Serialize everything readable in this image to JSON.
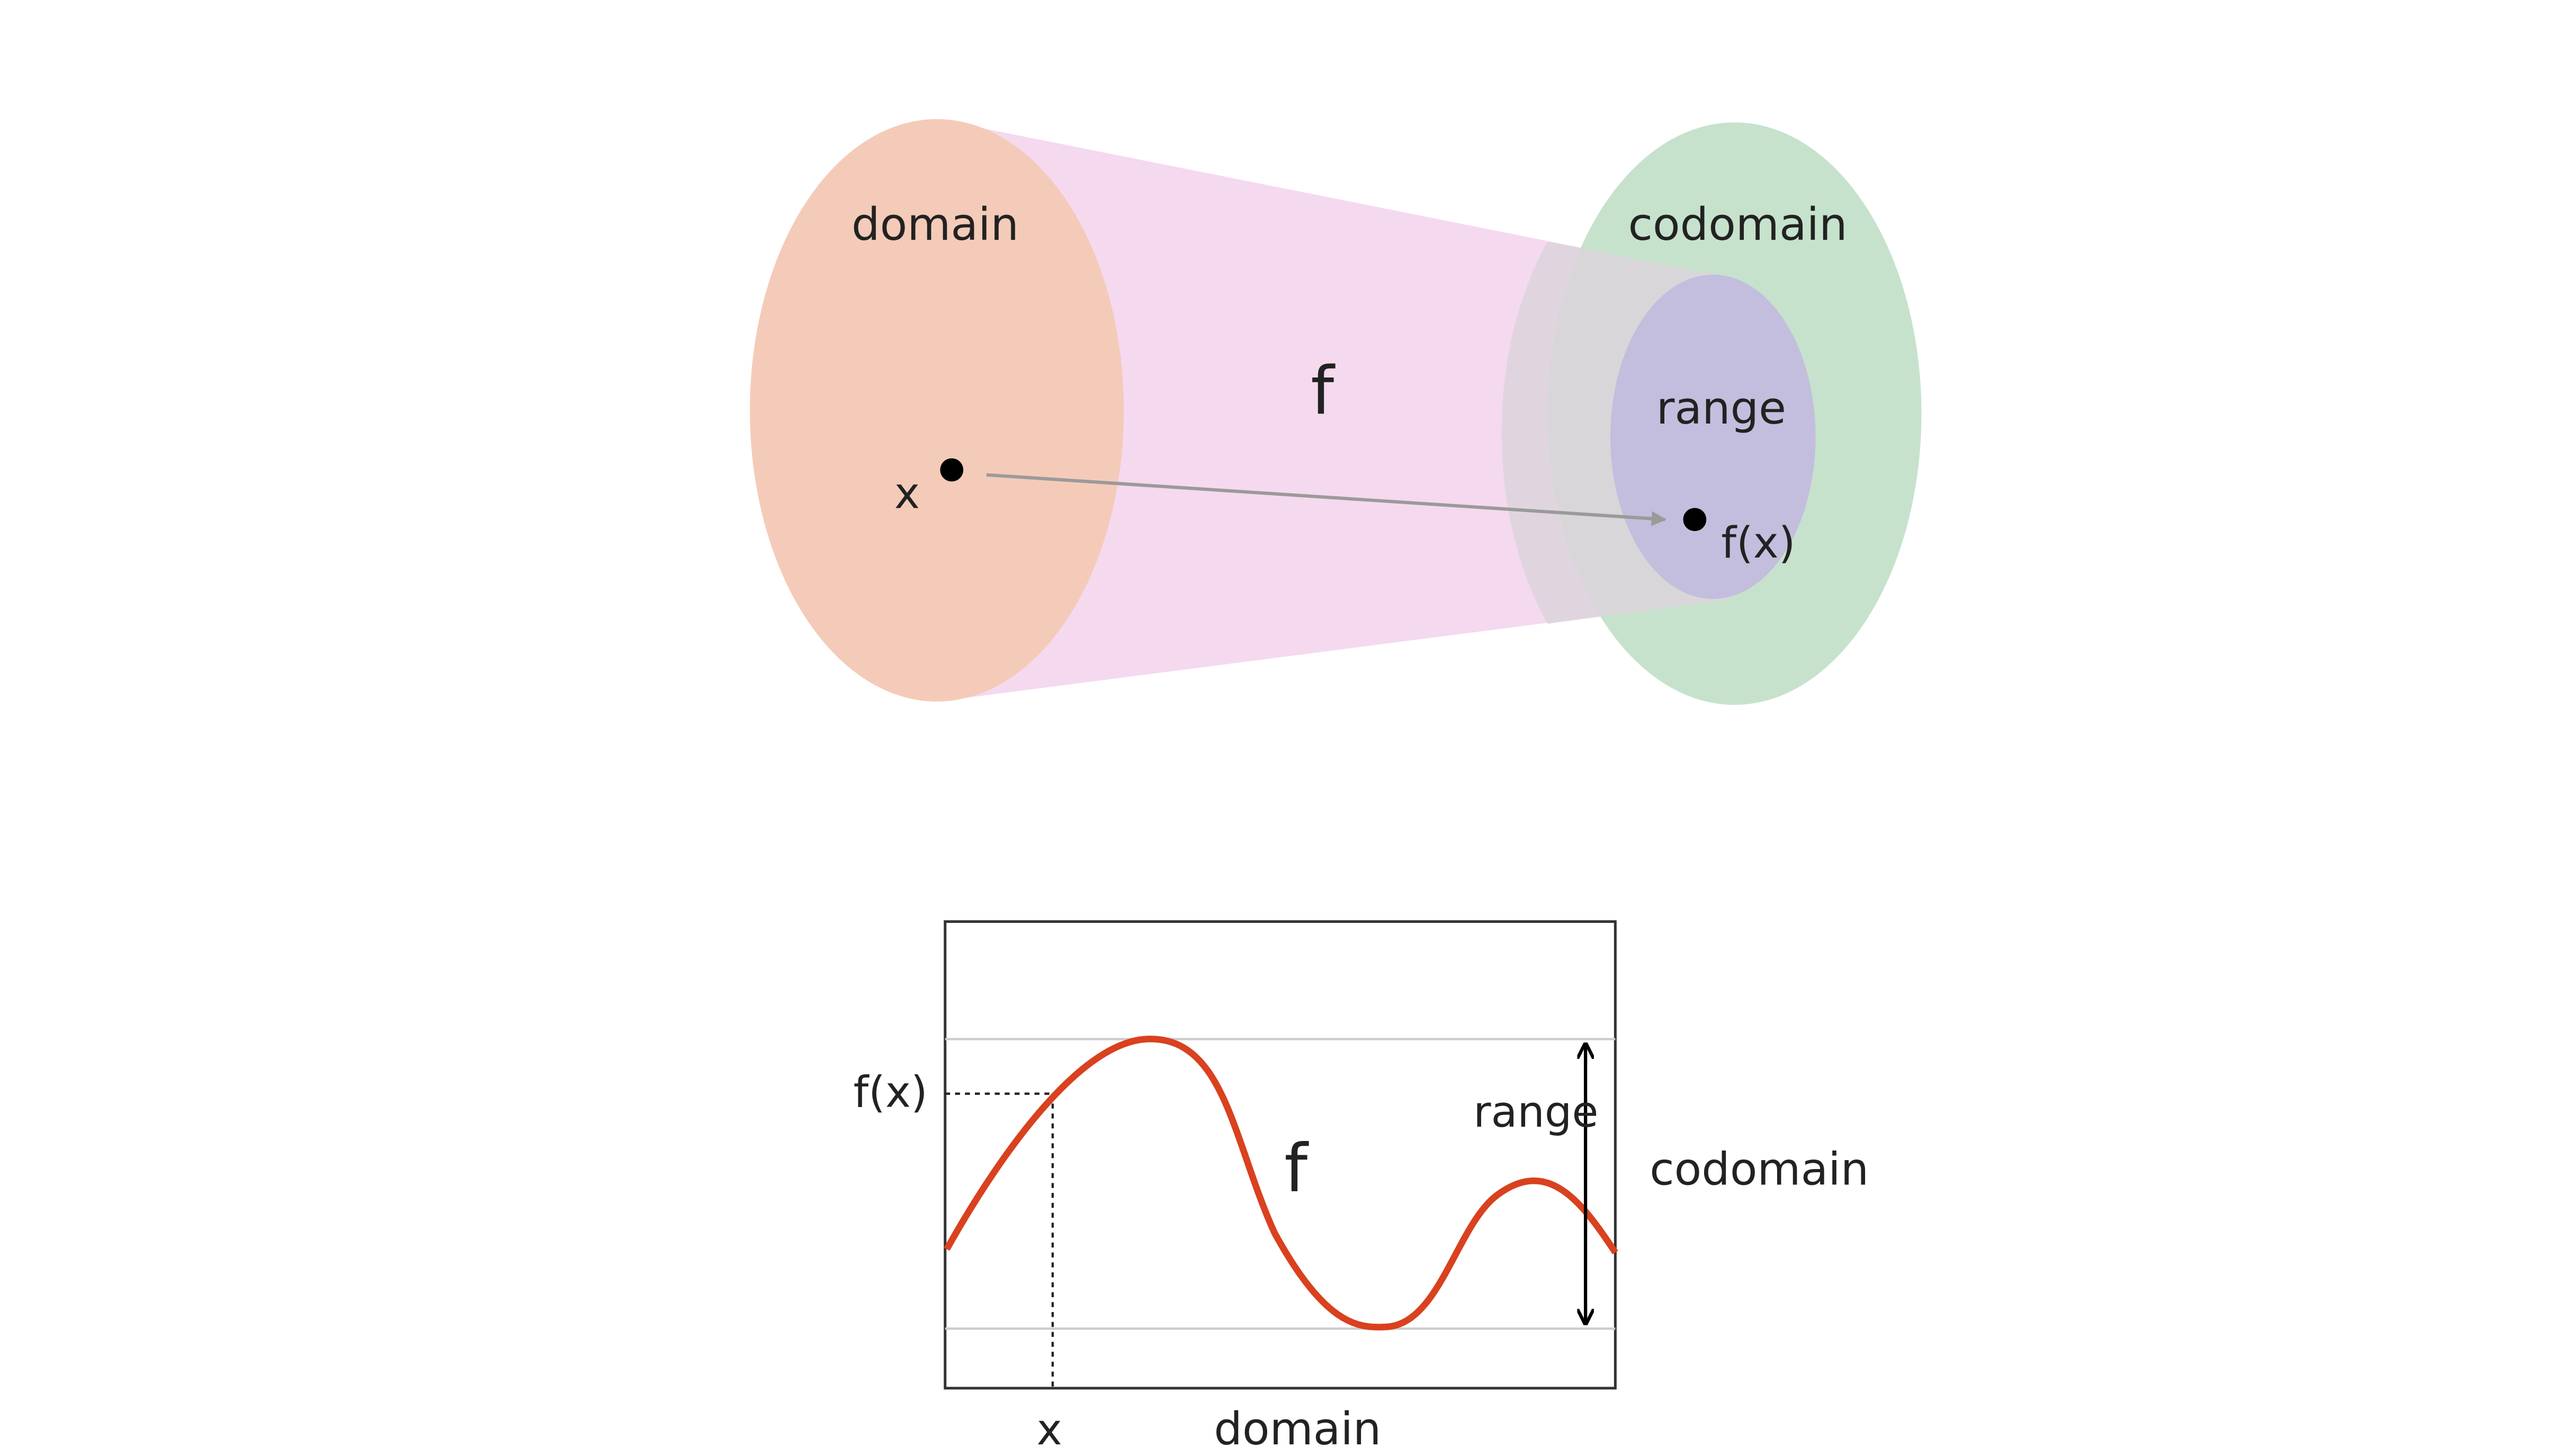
{
  "colors": {
    "domain_fill": "#f4cbb8",
    "mapping_fill": "#f5d9ef",
    "codomain_fill": "#c6e2cc",
    "range_fill": "#c3bedd",
    "curve": "#d9411f",
    "arrow": "#9a9a9a",
    "point": "#000000",
    "frame": "#333333",
    "guide_line": "#cccccc"
  },
  "mapping_diagram": {
    "domain_label": "domain",
    "codomain_label": "codomain",
    "range_label": "range",
    "function_label": "f",
    "input_label": "x",
    "output_label": "f(x)"
  },
  "graph_diagram": {
    "function_label": "f",
    "output_label": "f(x)",
    "input_label": "x",
    "domain_label": "domain",
    "range_label": "range",
    "codomain_label": "codomain"
  }
}
